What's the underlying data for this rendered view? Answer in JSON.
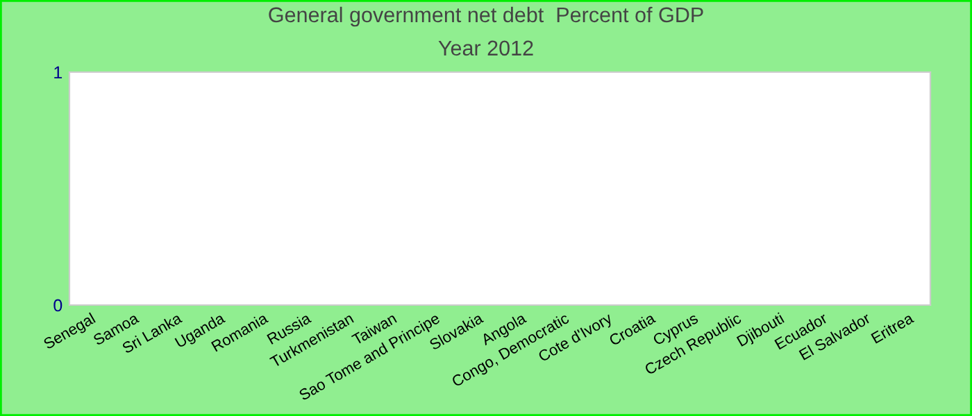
{
  "chart_data": {
    "type": "bar",
    "title": "General government net debt  Percent of GDP",
    "subtitle": "Year 2012",
    "categories": [
      "Senegal",
      "Samoa",
      "Sri Lanka",
      "Uganda",
      "Romania",
      "Russia",
      "Turkmenistan",
      "Taiwan",
      "Sao Tome and Principe",
      "Slovakia",
      "Angola",
      "Congo, Democratic",
      "Cote d'Ivory",
      "Croatia",
      "Cyprus",
      "Czech Republic",
      "Djibouti",
      "Ecuador",
      "El Salvador",
      "Eritrea"
    ],
    "values": [
      null,
      null,
      null,
      null,
      null,
      null,
      null,
      null,
      null,
      null,
      null,
      null,
      null,
      null,
      null,
      null,
      null,
      null,
      null,
      null
    ],
    "ylim": [
      0,
      1
    ],
    "yticks": [
      0,
      1
    ],
    "grid": false,
    "legend": false
  }
}
